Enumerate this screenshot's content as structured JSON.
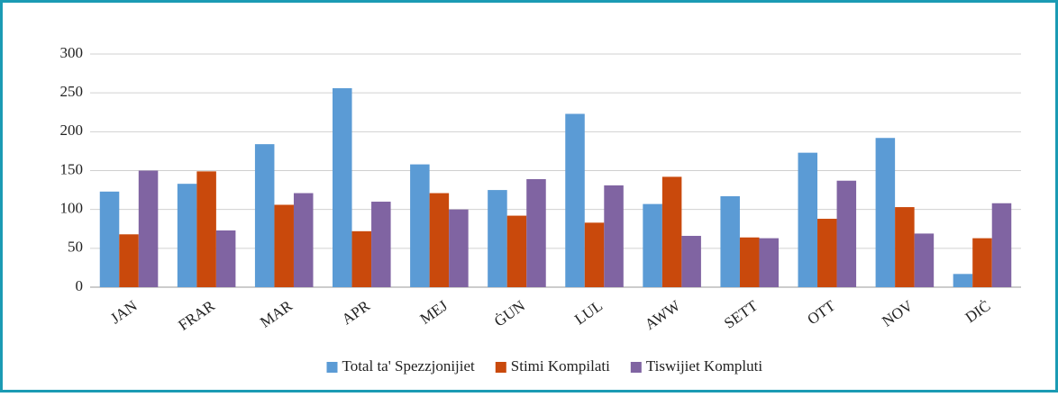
{
  "chart_data": {
    "type": "bar",
    "categories": [
      "JAN",
      "FRAR",
      "MAR",
      "APR",
      "MEJ",
      "ĠUN",
      "LUL",
      "AWW",
      "SETT",
      "OTT",
      "NOV",
      "DIĊ"
    ],
    "series": [
      {
        "name": "Total ta' Spezzjonijiet",
        "color": "#5b9bd5",
        "values": [
          123,
          133,
          184,
          256,
          158,
          125,
          223,
          107,
          117,
          173,
          192,
          17
        ]
      },
      {
        "name": "Stimi Kompilati",
        "color": "#c9490c",
        "values": [
          68,
          149,
          106,
          72,
          121,
          92,
          83,
          142,
          64,
          88,
          103,
          63
        ]
      },
      {
        "name": "Tiswijiet Kompluti",
        "color": "#8064a2",
        "values": [
          150,
          73,
          121,
          110,
          100,
          139,
          131,
          66,
          63,
          137,
          69,
          108
        ]
      }
    ],
    "ylim": [
      0,
      300
    ],
    "yticks": [
      0,
      50,
      100,
      150,
      200,
      250,
      300
    ],
    "grid": true,
    "legend": "bottom"
  }
}
